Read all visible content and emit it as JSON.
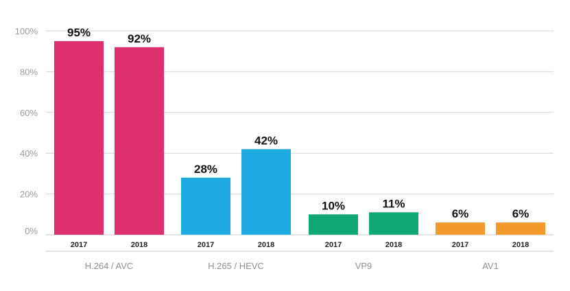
{
  "chart_data": {
    "type": "bar",
    "ylim": [
      0,
      100
    ],
    "yticks": [
      "0%",
      "20%",
      "40%",
      "60%",
      "80%",
      "100%"
    ],
    "grid": true,
    "groups": [
      {
        "label": "H.264 / AVC",
        "color": "#dc2f6e",
        "bars": [
          {
            "year": "2017",
            "value": 95,
            "label": "95%"
          },
          {
            "year": "2018",
            "value": 92,
            "label": "92%"
          }
        ]
      },
      {
        "label": "H.265 / HEVC",
        "color": "#1ea9e1",
        "bars": [
          {
            "year": "2017",
            "value": 28,
            "label": "28%"
          },
          {
            "year": "2018",
            "value": 42,
            "label": "42%"
          }
        ]
      },
      {
        "label": "VP9",
        "color": "#12a876",
        "bars": [
          {
            "year": "2017",
            "value": 10,
            "label": "10%"
          },
          {
            "year": "2018",
            "value": 11,
            "label": "11%"
          }
        ]
      },
      {
        "label": "AV1",
        "color": "#f39a2c",
        "bars": [
          {
            "year": "2017",
            "value": 6,
            "label": "6%"
          },
          {
            "year": "2018",
            "value": 6,
            "label": "6%"
          }
        ]
      }
    ]
  }
}
